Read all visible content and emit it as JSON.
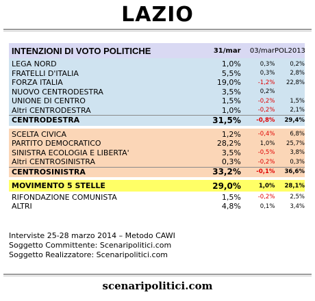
{
  "title": "LAZIO",
  "footer": "scenaripolitici.com",
  "notes": [
    "Interviste 25-28 marzo 2014 – Metodo CAWI",
    "Soggetto Committente: Scenaripolitici.com",
    "Soggetto Realizzatore: Scenaripolitici.com"
  ],
  "table": {
    "header": {
      "name": "INTENZIONI DI VOTO POLITICHE",
      "col1": "31/mar",
      "col2": "03/mar",
      "col3": "POL2013"
    },
    "groups": [
      {
        "color": "#cfe3f0",
        "rows": [
          {
            "name": "LEGA NORD",
            "v1": "1,0%",
            "v2": "0,3%",
            "v3": "0,2%"
          },
          {
            "name": "FRATELLI D'ITALIA",
            "v1": "5,5%",
            "v2": "0,3%",
            "v3": "2,8%"
          },
          {
            "name": "FORZA ITALIA",
            "v1": "19,0%",
            "v2": "-1,2%",
            "v3": "22,8%"
          },
          {
            "name": "NUOVO CENTRODESTRA",
            "v1": "3,5%",
            "v2": "0,2%",
            "v3": ""
          },
          {
            "name": "UNIONE DI CENTRO",
            "v1": "1,5%",
            "v2": "-0,2%",
            "v3": "1,5%"
          },
          {
            "name": "Altri CENTRODESTRA",
            "v1": "1,0%",
            "v2": "-0,2%",
            "v3": "2,1%"
          }
        ],
        "total": {
          "name": "CENTRODESTRA",
          "v1": "31,5%",
          "v2": "-0,8%",
          "v3": "29,4%"
        }
      },
      {
        "color": "#fbd6b7",
        "rows": [
          {
            "name": "SCELTA CIVICA",
            "v1": "1,2%",
            "v2": "-0,4%",
            "v3": "6,8%"
          },
          {
            "name": "PARTITO DEMOCRATICO",
            "v1": "28,2%",
            "v2": "1,0%",
            "v3": "25,7%"
          },
          {
            "name": "SINISTRA ECOLOGIA E LIBERTA'",
            "v1": "3,5%",
            "v2": "-0,5%",
            "v3": "3,8%"
          },
          {
            "name": "Altri CENTROSINISTRA",
            "v1": "0,3%",
            "v2": "-0,2%",
            "v3": "0,3%"
          }
        ],
        "total": {
          "name": "CENTROSINISTRA",
          "v1": "33,2%",
          "v2": "-0,1%",
          "v3": "36,6%"
        }
      },
      {
        "color": "#ffff66",
        "rows": [
          {
            "name": "MOVIMENTO 5 STELLE",
            "v1": "29,0%",
            "v2": "1,0%",
            "v3": "28,1%",
            "bold": true
          }
        ]
      },
      {
        "color": "#ffffff",
        "rows": [
          {
            "name": "RIFONDAZIONE COMUNISTA",
            "v1": "1,5%",
            "v2": "-0,2%",
            "v3": "2,5%"
          },
          {
            "name": "ALTRI",
            "v1": "4,8%",
            "v2": "0,1%",
            "v3": "3,4%"
          }
        ]
      }
    ]
  },
  "chart_data": {
    "type": "table",
    "title": "LAZIO",
    "columns": [
      "INTENZIONI DI VOTO POLITICHE",
      "31/mar",
      "03/mar",
      "POL2013"
    ],
    "rows": [
      [
        "LEGA NORD",
        1.0,
        0.3,
        0.2
      ],
      [
        "FRATELLI D'ITALIA",
        5.5,
        0.3,
        2.8
      ],
      [
        "FORZA ITALIA",
        19.0,
        -1.2,
        22.8
      ],
      [
        "NUOVO CENTRODESTRA",
        3.5,
        0.2,
        null
      ],
      [
        "UNIONE DI CENTRO",
        1.5,
        -0.2,
        1.5
      ],
      [
        "Altri CENTRODESTRA",
        1.0,
        -0.2,
        2.1
      ],
      [
        "CENTRODESTRA",
        31.5,
        -0.8,
        29.4
      ],
      [
        "SCELTA CIVICA",
        1.2,
        -0.4,
        6.8
      ],
      [
        "PARTITO DEMOCRATICO",
        28.2,
        1.0,
        25.7
      ],
      [
        "SINISTRA ECOLOGIA E LIBERTA'",
        3.5,
        -0.5,
        3.8
      ],
      [
        "Altri CENTROSINISTRA",
        0.3,
        -0.2,
        0.3
      ],
      [
        "CENTROSINISTRA",
        33.2,
        -0.1,
        36.6
      ],
      [
        "MOVIMENTO 5 STELLE",
        29.0,
        1.0,
        28.1
      ],
      [
        "RIFONDAZIONE COMUNISTA",
        1.5,
        -0.2,
        2.5
      ],
      [
        "ALTRI",
        4.8,
        0.1,
        3.4
      ]
    ]
  }
}
